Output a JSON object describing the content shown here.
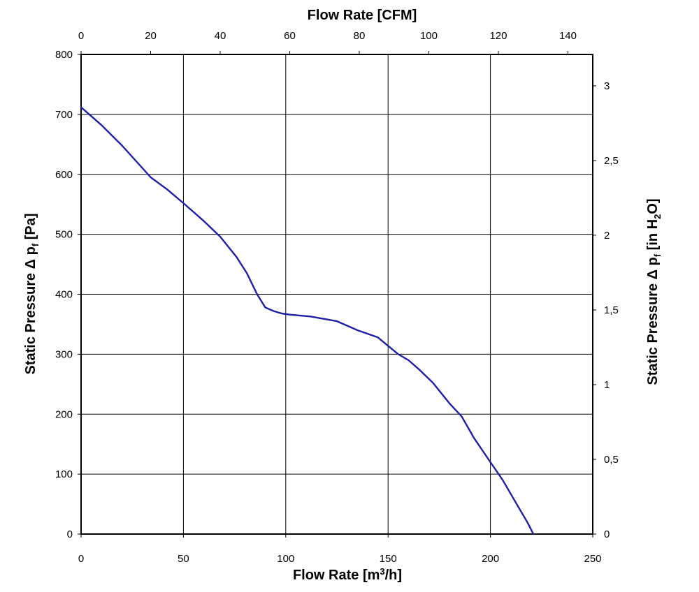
{
  "chart_data": {
    "type": "line",
    "x_axis_bottom": {
      "label_main": "Flow Rate [m",
      "label_sup": "3",
      "label_tail": "/h]",
      "range": [
        0,
        250
      ],
      "ticks": [
        "0",
        "50",
        "100",
        "150",
        "200",
        "250"
      ]
    },
    "x_axis_top": {
      "label": "Flow Rate [CFM]",
      "range": [
        0,
        147.14
      ],
      "ticks": [
        "0",
        "20",
        "40",
        "60",
        "80",
        "100",
        "120",
        "140"
      ]
    },
    "y_axis_left": {
      "label_main": "Static Pressure Δ p",
      "label_sub": "f",
      "label_tail": " [Pa]",
      "range": [
        0,
        800
      ],
      "ticks": [
        "0",
        "100",
        "200",
        "300",
        "400",
        "500",
        "600",
        "700",
        "800"
      ]
    },
    "y_axis_right": {
      "label_main": "Static Pressure Δ p",
      "label_sub": "f",
      "label_mid": " [in H",
      "label_sub2": "2",
      "label_tail": "O]",
      "range": [
        0,
        3.21
      ],
      "ticks": [
        "0",
        "0,5",
        "1",
        "1,5",
        "2",
        "2,5",
        "3"
      ]
    },
    "grid": true,
    "series": [
      {
        "color": "#1f1fa8",
        "x": [
          0,
          10,
          20,
          34,
          42,
          50,
          60,
          68,
          76,
          81,
          86,
          90,
          94,
          98,
          102,
          112,
          125,
          135,
          145,
          150,
          155,
          160,
          165,
          172,
          180,
          186,
          192,
          200,
          206,
          212,
          218,
          221
        ],
        "y": [
          712,
          682,
          648,
          595,
          575,
          552,
          522,
          496,
          462,
          435,
          400,
          378,
          372,
          368,
          366,
          363,
          355,
          340,
          328,
          314,
          300,
          290,
          275,
          252,
          218,
          196,
          160,
          120,
          90,
          55,
          20,
          0
        ]
      }
    ]
  }
}
